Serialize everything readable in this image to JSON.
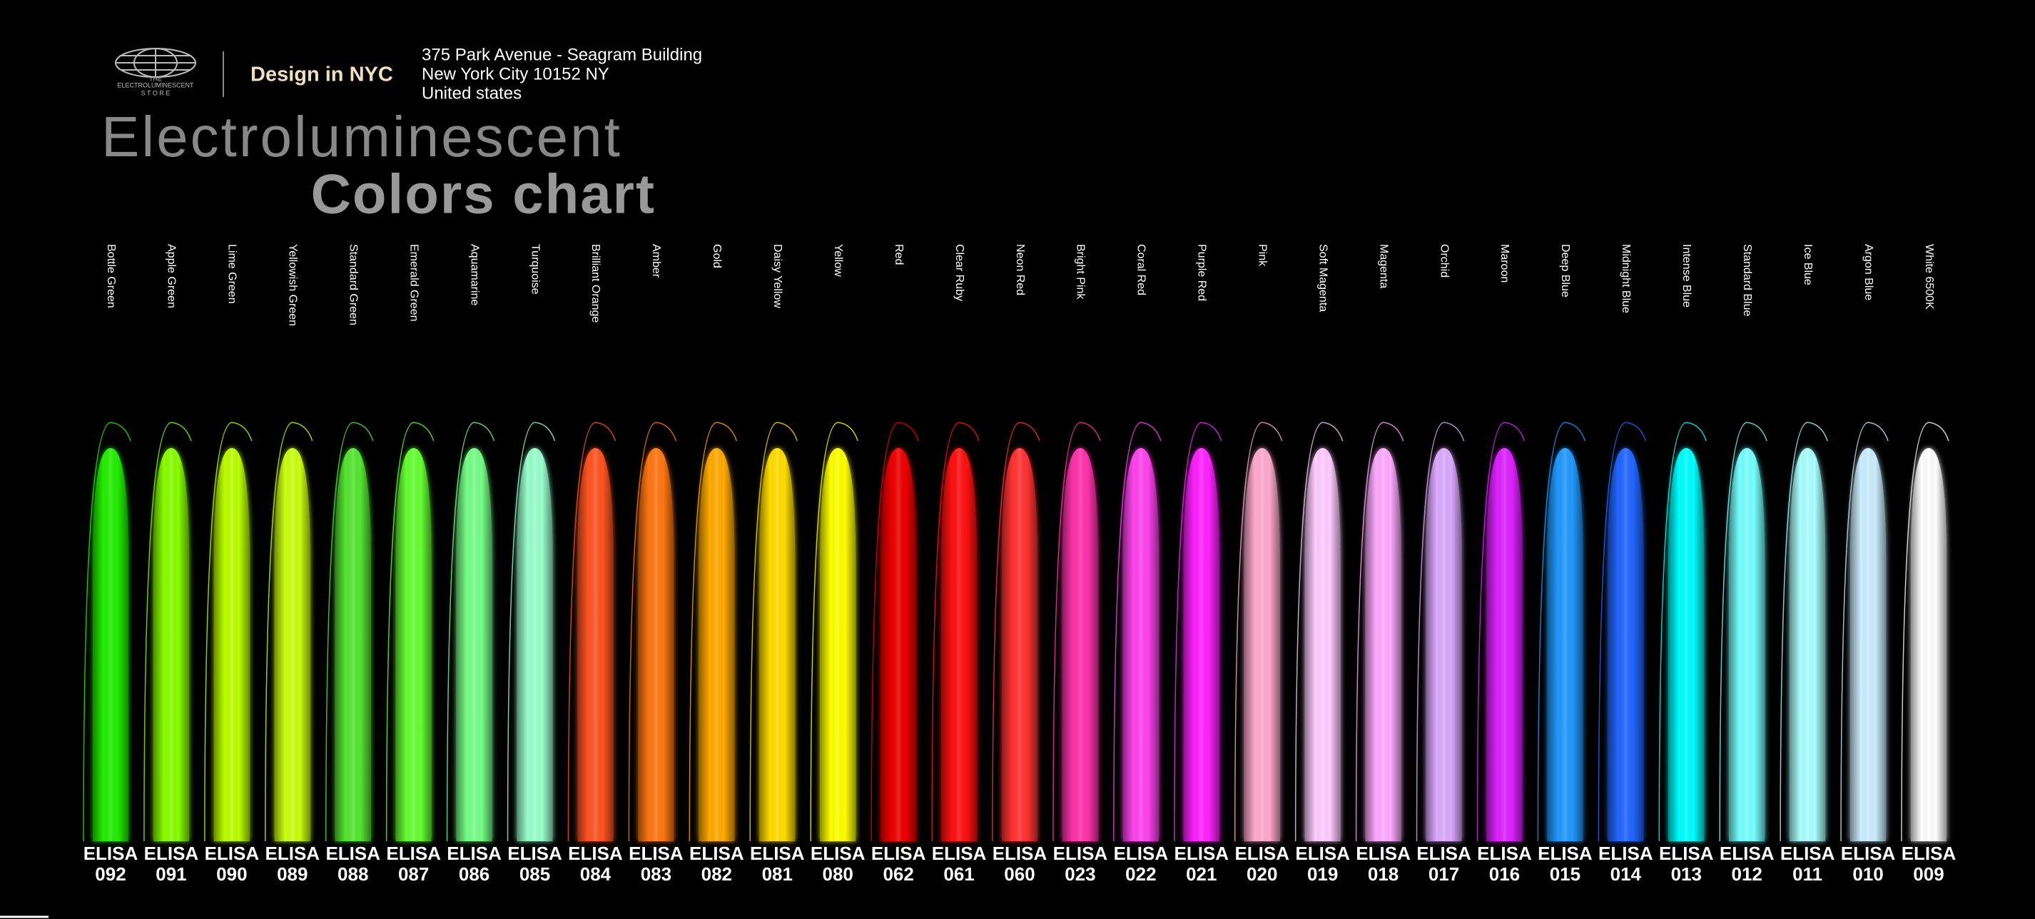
{
  "header": {
    "logo": {
      "line1": "THE",
      "line2": "ELECTROLUMINESCENT",
      "line3": "S T O R E"
    },
    "tagline": "Design in NYC",
    "address": [
      "375 Park Avenue - Seagram Building",
      "New York City 10152 NY",
      "United states"
    ],
    "title": "Electroluminescent",
    "subtitle": "Colors chart"
  },
  "swatches": [
    {
      "name": "Bottle Green",
      "brand": "ELISA",
      "code": "092",
      "color": "#22ee00"
    },
    {
      "name": "Apple Green",
      "brand": "ELISA",
      "code": "091",
      "color": "#88ff00"
    },
    {
      "name": "Lime Green",
      "brand": "ELISA",
      "code": "090",
      "color": "#bbff00"
    },
    {
      "name": "Yellowish Green",
      "brand": "ELISA",
      "code": "089",
      "color": "#ccff11"
    },
    {
      "name": "Standard Green",
      "brand": "ELISA",
      "code": "088",
      "color": "#55e633"
    },
    {
      "name": "Emerald Green",
      "brand": "ELISA",
      "code": "087",
      "color": "#66ff33"
    },
    {
      "name": "Aquamarine",
      "brand": "ELISA",
      "code": "086",
      "color": "#77ff88"
    },
    {
      "name": "Turquoise",
      "brand": "ELISA",
      "code": "085",
      "color": "#99ffcc"
    },
    {
      "name": "Brilliant Orange",
      "brand": "ELISA",
      "code": "084",
      "color": "#ff5522"
    },
    {
      "name": "Amber",
      "brand": "ELISA",
      "code": "083",
      "color": "#ff7711"
    },
    {
      "name": "Gold",
      "brand": "ELISA",
      "code": "082",
      "color": "#ffaa00"
    },
    {
      "name": "Daisy Yellow",
      "brand": "ELISA",
      "code": "081",
      "color": "#ffdd00"
    },
    {
      "name": "Yellow",
      "brand": "ELISA",
      "code": "080",
      "color": "#ffff00"
    },
    {
      "name": "Red",
      "brand": "ELISA",
      "code": "062",
      "color": "#ee0000"
    },
    {
      "name": "Clear Ruby",
      "brand": "ELISA",
      "code": "061",
      "color": "#ff1111"
    },
    {
      "name": "Neon Red",
      "brand": "ELISA",
      "code": "060",
      "color": "#ff3333"
    },
    {
      "name": "Bright Pink",
      "brand": "ELISA",
      "code": "023",
      "color": "#ff33aa"
    },
    {
      "name": "Coral Red",
      "brand": "ELISA",
      "code": "022",
      "color": "#ff44ee"
    },
    {
      "name": "Purple Red",
      "brand": "ELISA",
      "code": "021",
      "color": "#ff22ff"
    },
    {
      "name": "Pink",
      "brand": "ELISA",
      "code": "020",
      "color": "#ffaacc"
    },
    {
      "name": "Soft Magenta",
      "brand": "ELISA",
      "code": "019",
      "color": "#ffccff"
    },
    {
      "name": "Magenta",
      "brand": "ELISA",
      "code": "018",
      "color": "#ffaaff"
    },
    {
      "name": "Orchid",
      "brand": "ELISA",
      "code": "017",
      "color": "#ddaaff"
    },
    {
      "name": "Maroon",
      "brand": "ELISA",
      "code": "016",
      "color": "#dd22ff"
    },
    {
      "name": "Deep Blue",
      "brand": "ELISA",
      "code": "015",
      "color": "#2299ff"
    },
    {
      "name": "Midnight Blue",
      "brand": "ELISA",
      "code": "014",
      "color": "#2266ff"
    },
    {
      "name": "Intense Blue",
      "brand": "ELISA",
      "code": "013",
      "color": "#00ffff"
    },
    {
      "name": "Standard Blue",
      "brand": "ELISA",
      "code": "012",
      "color": "#77ffff"
    },
    {
      "name": "Ice Blue",
      "brand": "ELISA",
      "code": "011",
      "color": "#aaffff"
    },
    {
      "name": "Argon Blue",
      "brand": "ELISA",
      "code": "010",
      "color": "#cceeff"
    },
    {
      "name": "White 6500K",
      "brand": "ELISA",
      "code": "009",
      "color": "#ffffff"
    }
  ]
}
